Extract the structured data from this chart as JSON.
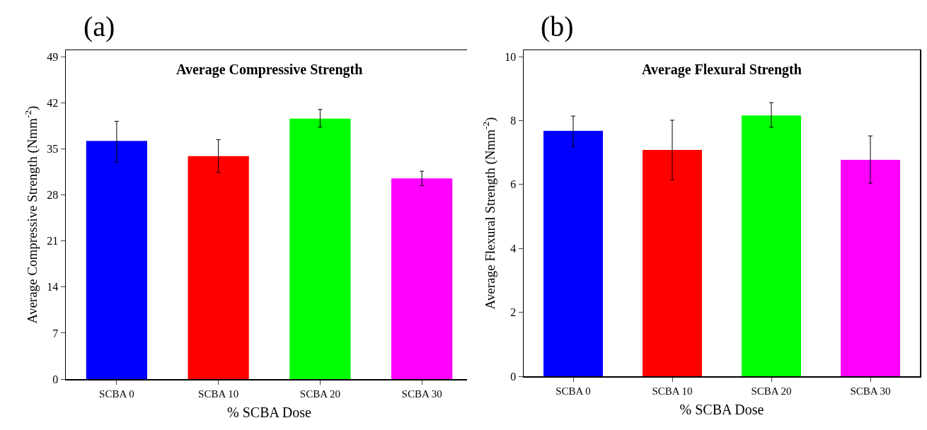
{
  "chart_data": [
    {
      "type": "bar",
      "title": "Average Compressive Strength",
      "xlabel": "% SCBA Dose",
      "ylabel": "Average Compressive Strength (Nmm$^{-2}$)",
      "annotations": [
        "(a)"
      ],
      "categories": [
        "SCBA 0",
        "SCBA 10",
        "SCBA 20",
        "SCBA 30"
      ],
      "values": [
        36.2,
        33.9,
        39.6,
        30.5
      ],
      "colors": [
        "#0000ff",
        "#ff0000",
        "#00ff00",
        "#ff00ff"
      ],
      "errors": [
        [
          33.0,
          39.2
        ],
        [
          31.4,
          36.4
        ],
        [
          38.3,
          41.0
        ],
        [
          29.4,
          31.6
        ]
      ],
      "ylim": [
        0,
        50
      ],
      "yticks": [
        0,
        7,
        14,
        21,
        28,
        35,
        42,
        49
      ],
      "grid": false,
      "legend": false
    },
    {
      "type": "bar",
      "title": "Average Flexural Strength",
      "xlabel": "% SCBA Dose",
      "ylabel": "Average Flexural Strength (Nmm$^{-2}$)",
      "annotations": [
        "(b)"
      ],
      "categories": [
        "SCBA 0",
        "SCBA 10",
        "SCBA 20",
        "SCBA 30"
      ],
      "values": [
        7.68,
        7.08,
        8.16,
        6.77
      ],
      "colors": [
        "#0000ff",
        "#ff0000",
        "#00ff00",
        "#ff00ff"
      ],
      "errors": [
        [
          7.19,
          8.14
        ],
        [
          6.15,
          8.01
        ],
        [
          7.79,
          8.56
        ],
        [
          6.04,
          7.52
        ]
      ],
      "ylim": [
        0,
        10.2
      ],
      "yticks": [
        0,
        2,
        4,
        6,
        8,
        10
      ],
      "grid": false,
      "legend": false
    }
  ]
}
